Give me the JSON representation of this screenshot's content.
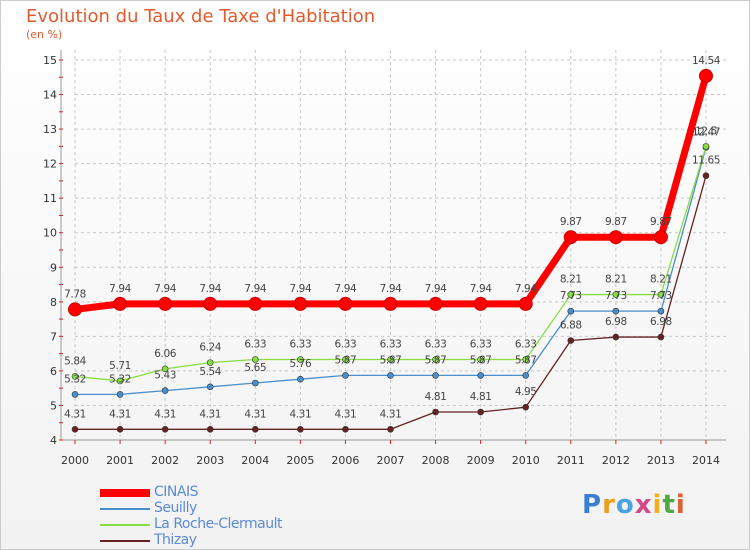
{
  "title": "Evolution du Taux de Taxe d'Habitation",
  "unit": "(en %)",
  "logo": "Proxiti",
  "chart_data": {
    "type": "line",
    "x": [
      2000,
      2001,
      2002,
      2003,
      2004,
      2005,
      2006,
      2007,
      2008,
      2009,
      2010,
      2011,
      2012,
      2013,
      2014
    ],
    "ylim": [
      4,
      15
    ],
    "yticks": [
      4,
      5,
      6,
      7,
      8,
      9,
      10,
      11,
      12,
      13,
      14,
      15
    ],
    "grid": true,
    "legend": "bottom-left",
    "series": [
      {
        "name": "CINAIS",
        "color": "#ff0000",
        "values": [
          7.78,
          7.94,
          7.94,
          7.94,
          7.94,
          7.94,
          7.94,
          7.94,
          7.94,
          7.94,
          7.94,
          9.87,
          9.87,
          9.87,
          14.54
        ],
        "labels": [
          "7.78",
          "7.94",
          "7.94",
          "7.94",
          "7.94",
          "7.94",
          "7.94",
          "7.94",
          "7.94",
          "7.94",
          "7.94",
          "9.87",
          "9.87",
          "9.87",
          "14.54"
        ]
      },
      {
        "name": "Seuilly",
        "color": "#4a8fcc",
        "values": [
          5.32,
          5.32,
          5.43,
          5.54,
          5.65,
          5.76,
          5.87,
          5.87,
          5.87,
          5.87,
          5.87,
          7.73,
          7.73,
          7.73,
          12.47
        ],
        "labels": [
          "5.32",
          "5.32",
          "5.43",
          "5.54",
          "5.65",
          "5.76",
          "5.87",
          "5.87",
          "5.87",
          "5.87",
          "5.87",
          "7.73",
          "7.73",
          "7.73",
          "12.47"
        ]
      },
      {
        "name": "La Roche-Clermault",
        "color": "#88dd44",
        "values": [
          5.84,
          5.71,
          6.06,
          6.24,
          6.33,
          6.33,
          6.33,
          6.33,
          6.33,
          6.33,
          6.33,
          8.21,
          8.21,
          8.21,
          12.5
        ],
        "labels": [
          "5.84",
          "5.71",
          "6.06",
          "6.24",
          "6.33",
          "6.33",
          "6.33",
          "6.33",
          "6.33",
          "6.33",
          "6.33",
          "8.21",
          "8.21",
          "8.21",
          "12.5"
        ]
      },
      {
        "name": "Thizay",
        "color": "#662222",
        "values": [
          4.31,
          4.31,
          4.31,
          4.31,
          4.31,
          4.31,
          4.31,
          4.31,
          4.81,
          4.81,
          4.95,
          6.88,
          6.98,
          6.98,
          11.65
        ],
        "labels": [
          "4.31",
          "4.31",
          "4.31",
          "4.31",
          "4.31",
          "4.31",
          "4.31",
          "4.31",
          "4.81",
          "4.81",
          "4.95",
          "6.88",
          "6.98",
          "6.98",
          "11.65"
        ]
      }
    ]
  }
}
